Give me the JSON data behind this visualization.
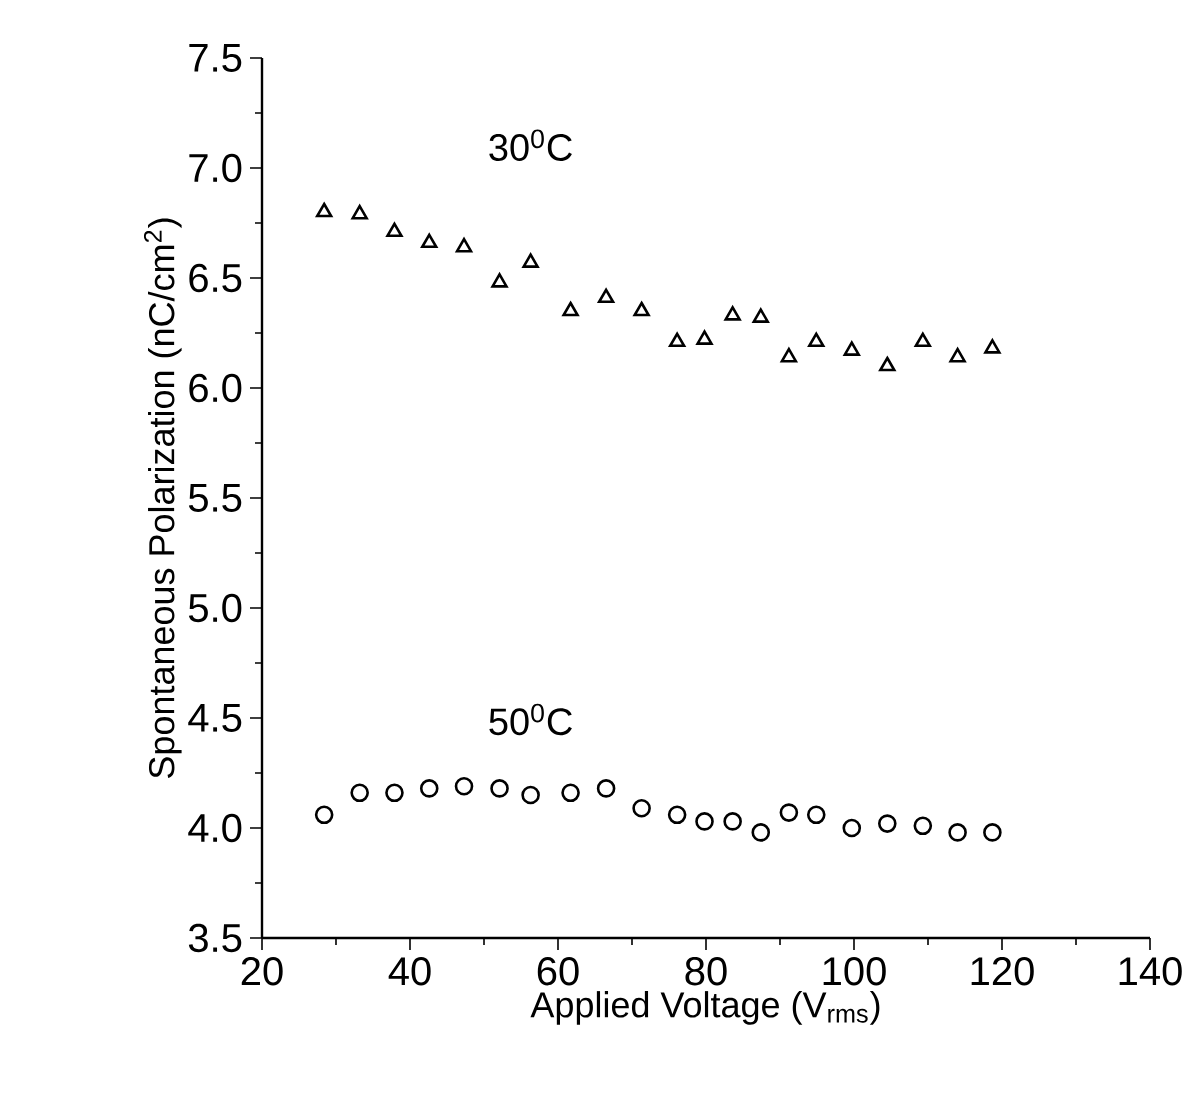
{
  "chart_data": {
    "type": "scatter",
    "xlabel": "Applied Voltage (V$_{rms}$)",
    "ylabel": "Spontaneous Polarization (nC/cm$^{2}$)",
    "xlim": [
      20,
      140
    ],
    "ylim": [
      3.5,
      7.5
    ],
    "xticks": [
      20,
      40,
      60,
      80,
      100,
      120,
      140
    ],
    "yticks": [
      3.5,
      {
        "value": 4,
        "label": "4.0"
      },
      4.5,
      {
        "value": 5,
        "label": "5.0"
      },
      5.5,
      {
        "value": 6,
        "label": "6.0"
      },
      6.5,
      {
        "value": 7,
        "label": "7.0"
      },
      7.5
    ],
    "grid": false,
    "legend": false,
    "x": [
      28.4,
      33.2,
      37.9,
      42.6,
      47.3,
      52.1,
      56.3,
      61.7,
      66.5,
      71.3,
      76.1,
      79.8,
      83.6,
      87.4,
      91.2,
      94.9,
      99.7,
      104.5,
      109.3,
      114.0,
      118.7
    ],
    "series": [
      {
        "name": "30$^{0}$C",
        "color": "#000000",
        "marker": "triangle",
        "values": [
          6.8,
          6.79,
          6.71,
          6.66,
          6.64,
          6.48,
          6.57,
          6.35,
          6.41,
          6.35,
          6.21,
          6.22,
          6.33,
          6.32,
          6.14,
          6.21,
          6.17,
          6.1,
          6.21,
          6.14,
          6.18
        ]
      },
      {
        "name": "50$^{0}$C",
        "color": "#000000",
        "marker": "circle",
        "values": [
          4.06,
          4.16,
          4.16,
          4.18,
          4.19,
          4.18,
          4.15,
          4.16,
          4.18,
          4.09,
          4.06,
          4.03,
          4.03,
          3.98,
          4.07,
          4.06,
          4.0,
          4.02,
          4.01,
          3.98,
          3.98
        ]
      }
    ]
  }
}
